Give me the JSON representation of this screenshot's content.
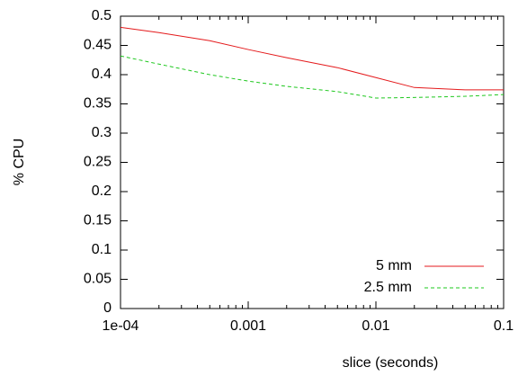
{
  "chart_data": {
    "type": "line",
    "x_label": "slice (seconds)",
    "y_label": "% CPU",
    "x": [
      0.0001,
      0.0002,
      0.0005,
      0.001,
      0.002,
      0.005,
      0.01,
      0.02,
      0.05,
      0.1
    ],
    "series": [
      {
        "name": "5 mm",
        "color": "#e41a1c",
        "dash": "solid",
        "values": [
          0.481,
          0.472,
          0.458,
          0.443,
          0.429,
          0.412,
          0.395,
          0.378,
          0.374,
          0.374
        ]
      },
      {
        "name": "2.5 mm",
        "color": "#1ec81e",
        "dash": "dashed",
        "values": [
          0.432,
          0.418,
          0.4,
          0.389,
          0.38,
          0.371,
          0.36,
          0.361,
          0.363,
          0.366
        ]
      }
    ],
    "xscale": "log",
    "xlim": [
      0.0001,
      0.1
    ],
    "xticks": [
      {
        "value": 0.0001,
        "label": "1e-04"
      },
      0.001,
      0.01,
      0.1
    ],
    "ylim": [
      0,
      0.5
    ],
    "yticks": [
      0,
      0.05,
      0.1,
      0.15,
      0.2,
      0.25,
      0.3,
      0.35,
      0.4,
      0.45,
      0.5
    ],
    "legend": "lower right"
  }
}
